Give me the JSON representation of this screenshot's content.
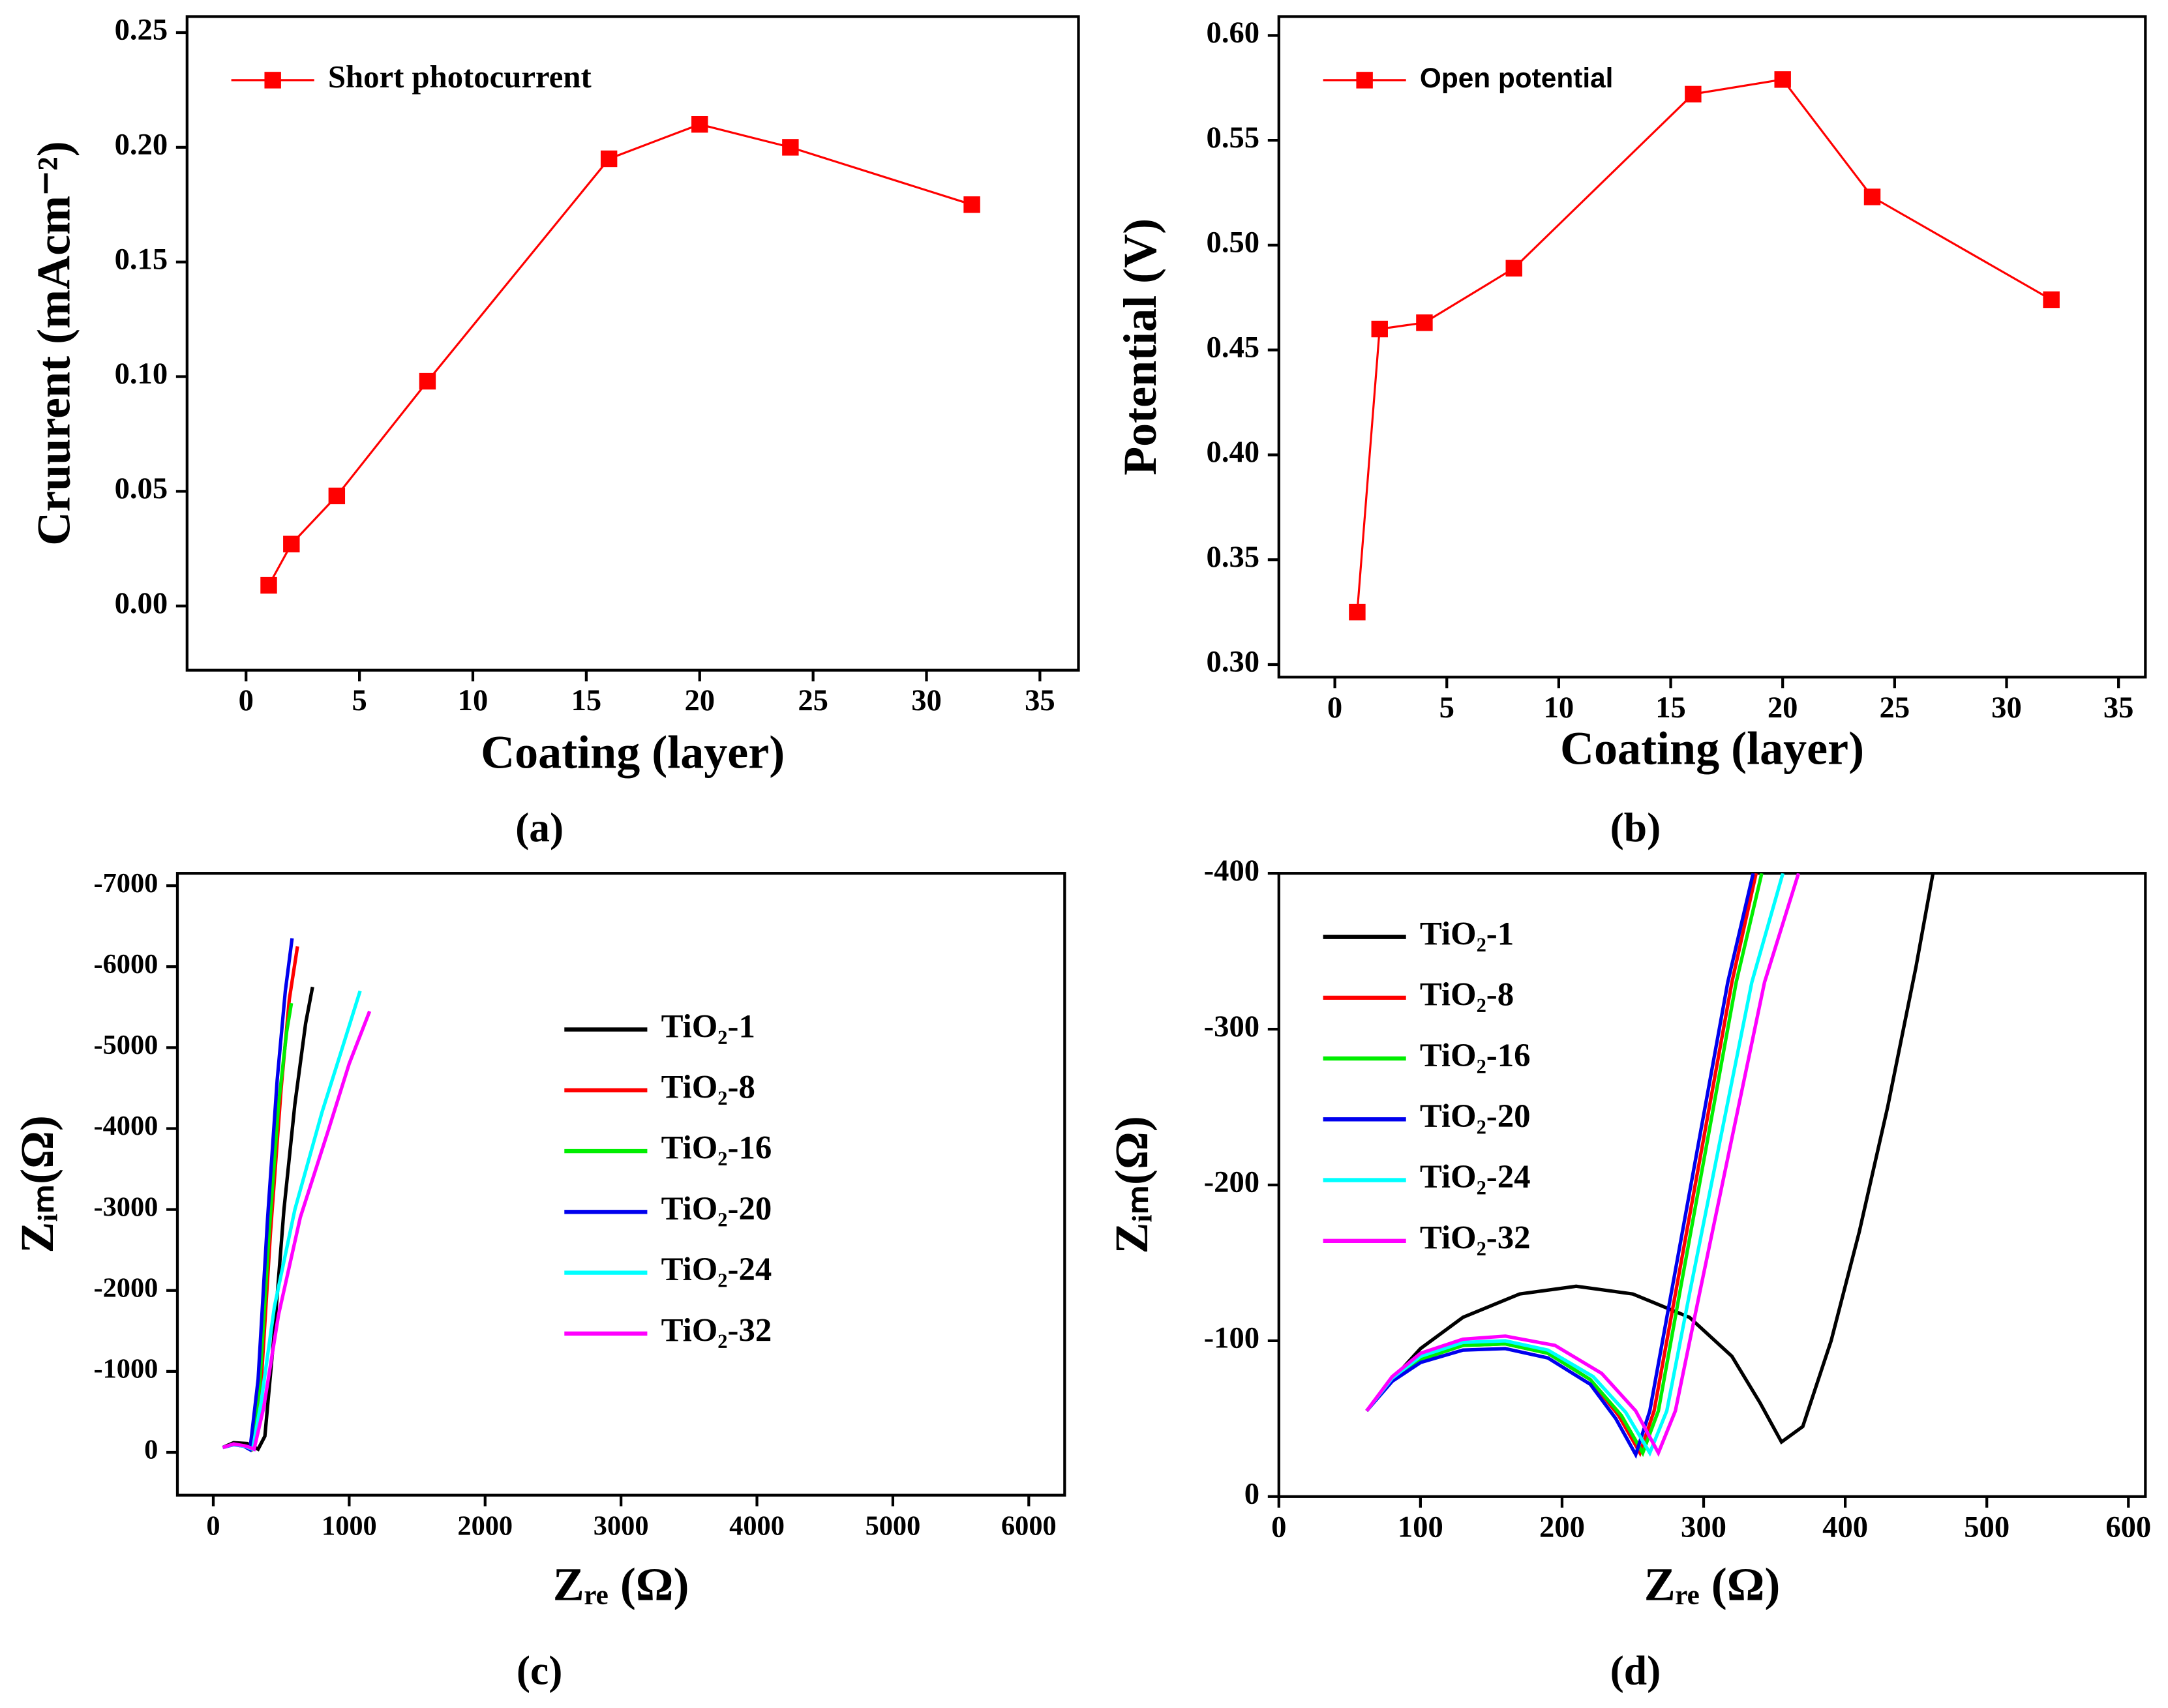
{
  "chart_data": [
    {
      "type": "line",
      "marker": "square",
      "legend": "upper left",
      "caption": "(a)",
      "x_label": "Coating  (layer)",
      "y_label": "Cruurent (mAcm⁻²)",
      "xlim": [
        -2.6,
        36.7
      ],
      "ylim": [
        -0.028,
        0.257
      ],
      "xticks": [
        0,
        5,
        10,
        15,
        20,
        25,
        30,
        35
      ],
      "yticks": [
        {
          "value": 0,
          "label": "0.00"
        },
        {
          "value": 0.05,
          "label": "0.05"
        },
        {
          "value": 0.1,
          "label": "0.10"
        },
        {
          "value": 0.15,
          "label": "0.15"
        },
        {
          "value": 0.2,
          "label": "0.20"
        },
        0.25
      ],
      "x": [
        1,
        2,
        4,
        8,
        16,
        20,
        24,
        32
      ],
      "series": [
        {
          "name": "Short photocurrent",
          "color": "#ff0000",
          "values": [
            0.009,
            0.027,
            0.048,
            0.098,
            0.195,
            0.21,
            0.2,
            0.175
          ]
        }
      ]
    },
    {
      "type": "line",
      "marker": "square",
      "legend": "upper left",
      "caption": "(b)",
      "x_label": "Coating  (layer)",
      "y_label": "Potential (V)",
      "xlim": [
        -2.5,
        36.2
      ],
      "ylim": [
        0.294,
        0.609
      ],
      "xticks": [
        0,
        5,
        10,
        15,
        20,
        25,
        30,
        35
      ],
      "yticks": [
        {
          "value": 0.3,
          "label": "0.30"
        },
        0.35,
        {
          "value": 0.4,
          "label": "0.40"
        },
        0.45,
        {
          "value": 0.5,
          "label": "0.50"
        },
        0.55,
        {
          "value": 0.6,
          "label": "0.60"
        }
      ],
      "x": [
        1,
        2,
        4,
        8,
        16,
        20,
        24,
        32
      ],
      "series": [
        {
          "name": "Open potential",
          "color": "#ff0000",
          "values": [
            0.325,
            0.46,
            0.463,
            0.489,
            0.572,
            0.579,
            0.523,
            0.474
          ]
        }
      ]
    },
    {
      "type": "line",
      "legend": "center right",
      "caption": "(c)",
      "x_label": "Zᵣₑ (Ω)",
      "y_label": "Zᵢₘ(Ω)",
      "xlim": [
        -264,
        6264
      ],
      "ylim": [
        529,
        -7153
      ],
      "xticks": [
        0,
        1000,
        2000,
        3000,
        4000,
        5000,
        6000
      ],
      "yticks": [
        0,
        -1000,
        -2000,
        -3000,
        -4000,
        -5000,
        -6000,
        -7000
      ],
      "series": [
        {
          "name": "TiO₂-1",
          "color": "#000000",
          "x": [
            70,
            150,
            250,
            330,
            380,
            450,
            520,
            600,
            680,
            730
          ],
          "values": [
            -60,
            -120,
            -110,
            -40,
            -200,
            -1500,
            -3000,
            -4300,
            -5300,
            -5750
          ]
        },
        {
          "name": "TiO₂-8",
          "color": "#ff0000",
          "x": [
            70,
            150,
            230,
            280,
            350,
            420,
            500,
            560,
            620
          ],
          "values": [
            -60,
            -100,
            -80,
            -40,
            -800,
            -2700,
            -4500,
            -5600,
            -6250
          ]
        },
        {
          "name": "TiO₂-16",
          "color": "#00ee00",
          "x": [
            70,
            150,
            230,
            275,
            340,
            410,
            480,
            540,
            575
          ],
          "values": [
            -60,
            -100,
            -80,
            -40,
            -800,
            -2700,
            -4300,
            -5200,
            -5550
          ]
        },
        {
          "name": "TiO₂-20",
          "color": "#0000ee",
          "x": [
            70,
            150,
            225,
            270,
            330,
            400,
            470,
            530,
            580
          ],
          "values": [
            -60,
            -95,
            -75,
            -35,
            -900,
            -2900,
            -4600,
            -5700,
            -6350
          ]
        },
        {
          "name": "TiO₂-24",
          "color": "#00ffff",
          "x": [
            70,
            150,
            240,
            290,
            350,
            450,
            600,
            800,
            950,
            1080
          ],
          "values": [
            -60,
            -100,
            -70,
            -40,
            -600,
            -1800,
            -3000,
            -4200,
            -5000,
            -5700
          ]
        },
        {
          "name": "TiO₂-32",
          "color": "#ff00ff",
          "x": [
            70,
            150,
            245,
            300,
            370,
            480,
            640,
            850,
            1000,
            1150
          ],
          "values": [
            -60,
            -105,
            -75,
            -40,
            -550,
            -1700,
            -2900,
            -4000,
            -4800,
            -5450
          ]
        }
      ]
    },
    {
      "type": "line",
      "legend": "upper left",
      "caption": "(d)",
      "x_label": "Zᵣₑ (Ω)",
      "y_label": "Zᵢₘ(Ω)",
      "xlim": [
        0,
        612
      ],
      "ylim": [
        0,
        -400
      ],
      "xticks": [
        0,
        100,
        200,
        300,
        400,
        500,
        600
      ],
      "yticks": [
        0,
        -100,
        -200,
        -300,
        -400
      ],
      "series": [
        {
          "name": "TiO₂-1",
          "color": "#000000",
          "x": [
            62,
            80,
            100,
            130,
            170,
            210,
            250,
            290,
            320,
            340,
            355,
            370,
            390,
            410,
            430,
            450,
            462
          ],
          "values": [
            -55,
            -75,
            -95,
            -115,
            -130,
            -135,
            -130,
            -115,
            -90,
            -60,
            -35,
            -45,
            -100,
            -170,
            -250,
            -340,
            -400
          ]
        },
        {
          "name": "TiO₂-8",
          "color": "#ff0000",
          "x": [
            62,
            80,
            100,
            130,
            160,
            190,
            220,
            240,
            255,
            265,
            280,
            300,
            320,
            337
          ],
          "values": [
            -55,
            -75,
            -88,
            -97,
            -98,
            -92,
            -75,
            -52,
            -28,
            -55,
            -130,
            -230,
            -330,
            -400
          ]
        },
        {
          "name": "TiO₂-16",
          "color": "#00ee00",
          "x": [
            62,
            80,
            100,
            130,
            160,
            190,
            220,
            242,
            257,
            268,
            283,
            303,
            323,
            341
          ],
          "values": [
            -55,
            -75,
            -88,
            -97,
            -98,
            -92,
            -75,
            -52,
            -28,
            -55,
            -130,
            -230,
            -330,
            -400
          ]
        },
        {
          "name": "TiO₂-20",
          "color": "#0000ee",
          "x": [
            62,
            80,
            100,
            130,
            160,
            190,
            220,
            238,
            252,
            262,
            277,
            297,
            317,
            335
          ],
          "values": [
            -55,
            -74,
            -86,
            -94,
            -95,
            -89,
            -72,
            -50,
            -27,
            -55,
            -130,
            -230,
            -330,
            -400
          ]
        },
        {
          "name": "TiO₂-24",
          "color": "#00ffff",
          "x": [
            62,
            80,
            100,
            130,
            160,
            190,
            222,
            245,
            262,
            274,
            290,
            312,
            334,
            356
          ],
          "values": [
            -55,
            -76,
            -90,
            -99,
            -100,
            -94,
            -77,
            -54,
            -28,
            -55,
            -130,
            -230,
            -330,
            -400
          ]
        },
        {
          "name": "TiO₂-32",
          "color": "#ff00ff",
          "x": [
            62,
            80,
            100,
            130,
            160,
            195,
            228,
            252,
            268,
            280,
            297,
            320,
            343,
            367
          ],
          "values": [
            -55,
            -77,
            -92,
            -101,
            -103,
            -97,
            -79,
            -55,
            -28,
            -55,
            -130,
            -230,
            -330,
            -400
          ]
        }
      ]
    }
  ]
}
